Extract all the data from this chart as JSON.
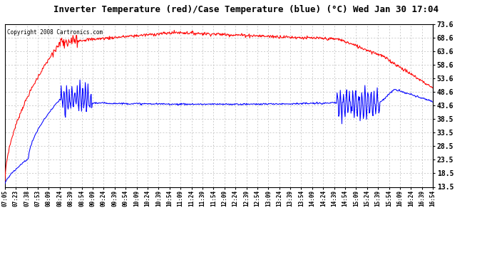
{
  "title": "Inverter Temperature (red)/Case Temperature (blue) (°C) Wed Jan 30 17:04",
  "copyright": "Copyright 2008 Cartronics.com",
  "ylabel_right_ticks": [
    13.5,
    18.5,
    23.5,
    28.5,
    33.5,
    38.5,
    43.6,
    48.6,
    53.6,
    58.6,
    63.6,
    68.6,
    73.6
  ],
  "ymin": 13.5,
  "ymax": 73.6,
  "x_labels": [
    "07:05",
    "07:23",
    "07:38",
    "07:53",
    "08:09",
    "08:24",
    "08:39",
    "08:54",
    "09:09",
    "09:24",
    "09:39",
    "09:54",
    "10:09",
    "10:24",
    "10:39",
    "10:54",
    "11:09",
    "11:24",
    "11:39",
    "11:54",
    "12:09",
    "12:24",
    "12:39",
    "12:54",
    "13:09",
    "13:24",
    "13:39",
    "13:54",
    "14:09",
    "14:24",
    "14:39",
    "14:54",
    "15:09",
    "15:24",
    "15:39",
    "15:54",
    "16:09",
    "16:24",
    "16:39",
    "16:54"
  ],
  "bg_color": "#ffffff",
  "grid_color": "#aaaaaa",
  "line_red_color": "#ff0000",
  "line_blue_color": "#0000ff"
}
